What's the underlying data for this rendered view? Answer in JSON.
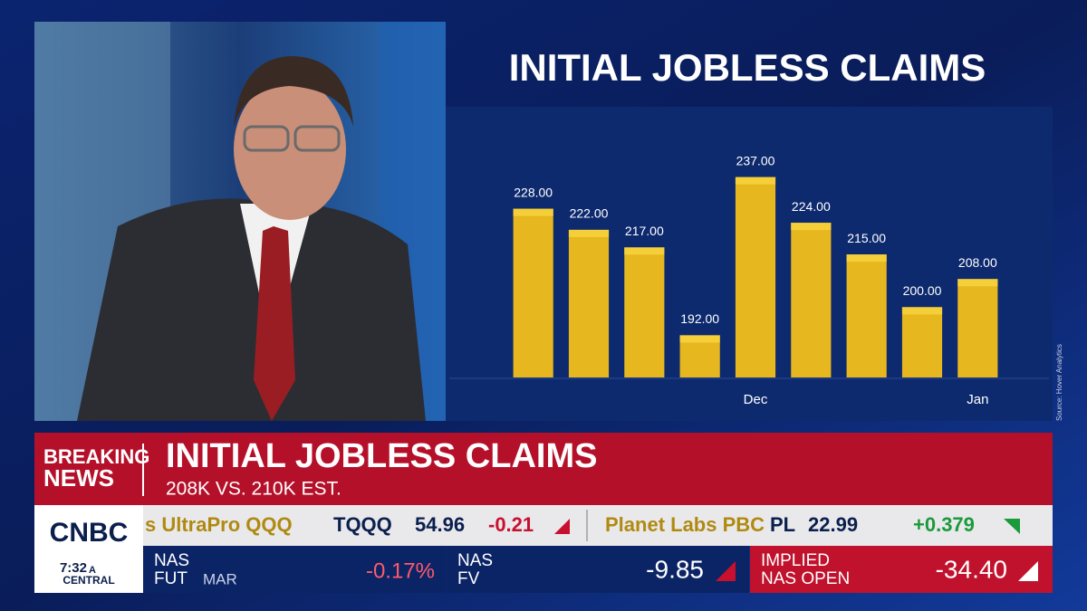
{
  "chart_data": {
    "type": "bar",
    "title": "INITIAL JOBLESS CLAIMS",
    "categories": [
      null,
      null,
      null,
      null,
      "Dec",
      null,
      null,
      null,
      "Jan"
    ],
    "values": [
      228,
      222,
      217,
      192,
      237,
      224,
      215,
      200,
      208
    ],
    "value_labels": [
      "228.00",
      "222.00",
      "217.00",
      "192.00",
      "237.00",
      "224.00",
      "215.00",
      "200.00",
      "208.00"
    ],
    "color": "#e6b71e",
    "ylim": [
      180,
      257
    ],
    "source": "Source: Hover Analytics"
  },
  "banner": {
    "tag": [
      "BREAKING",
      "NEWS"
    ],
    "headline": "INITIAL JOBLESS CLAIMS",
    "subhead": "208K VS. 210K EST."
  },
  "ticker": [
    {
      "name": "s UltraPro QQQ",
      "symbol": "TQQQ",
      "price": "54.96",
      "change": "-0.21"
    },
    {
      "name": "Planet Labs PBC",
      "symbol": "PL",
      "price": "22.99",
      "change": "+0.379"
    }
  ],
  "network": {
    "logo": "CNBC",
    "time": "7:32",
    "meridiem": "A",
    "zone": "CENTRAL"
  },
  "quotes": [
    {
      "label": [
        "NAS",
        "FUT"
      ],
      "detail": "MAR",
      "value": "-0.17%"
    },
    {
      "label": [
        "NAS",
        "FV"
      ],
      "value": "-9.85"
    },
    {
      "label": [
        "IMPLIED",
        "NAS OPEN"
      ],
      "value": "-34.40"
    }
  ]
}
